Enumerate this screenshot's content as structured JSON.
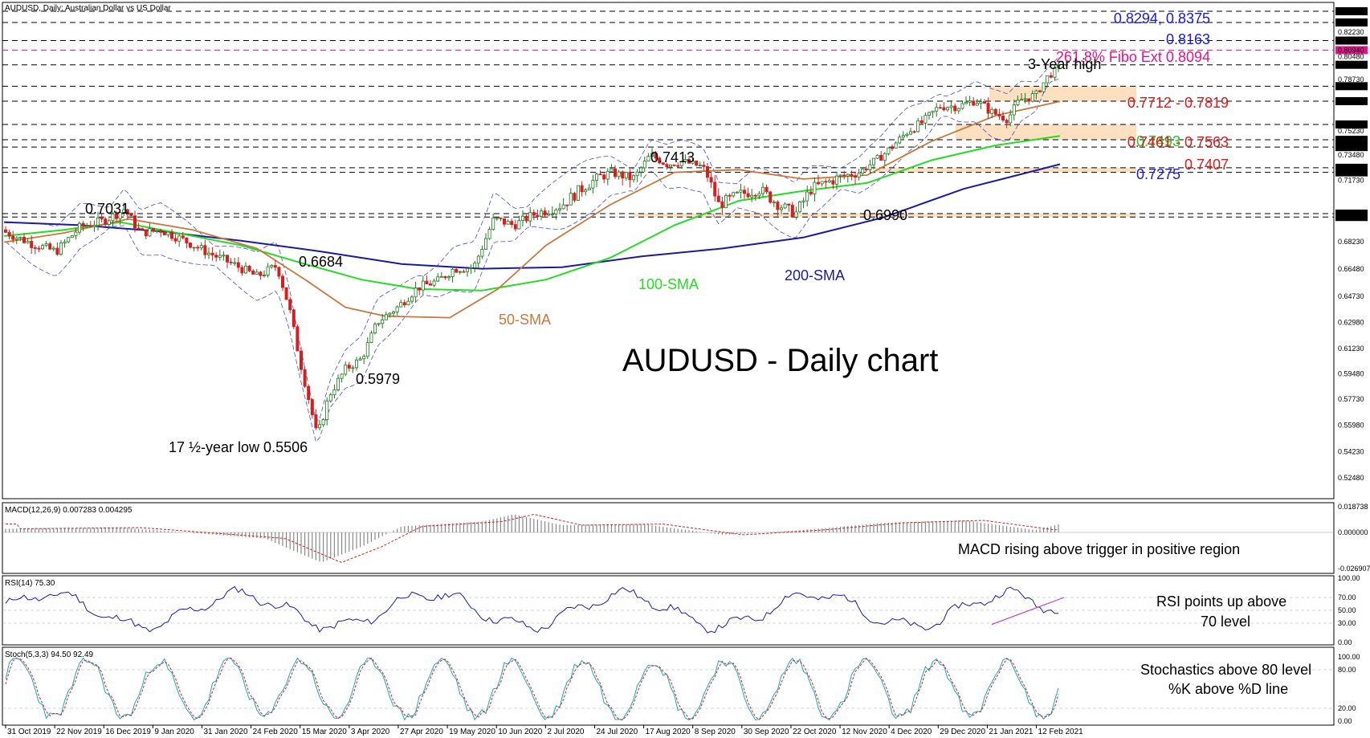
{
  "chart_data": {
    "type": "candlestick",
    "title": "AUDUSD, Daily:  Australian Dollar vs US Dollar",
    "headline": "AUDUSD - Daily chart",
    "x_dates": [
      "31 Oct 2019",
      "22 Nov 2019",
      "16 Dec 2019",
      "9 Jan 2020",
      "31 Jan 2020",
      "24 Feb 2020",
      "15 Mar 2020",
      "3 Apr 2020",
      "27 Apr 2020",
      "19 May 2020",
      "10 Jun 2020",
      "2 Jul 2020",
      "24 Jul 2020",
      "17 Aug 2020",
      "8 Sep 2020",
      "30 Sep 2020",
      "22 Oct 2020",
      "12 Nov 2020",
      "4 Dec 2020",
      "29 Dec 2020",
      "21 Jan 2021",
      "12 Feb 2021"
    ],
    "price_axis": [
      "0.83750",
      "0.82940",
      "0.82230",
      "0.81630",
      "0.80940",
      "0.80480",
      "0.79880",
      "0.78730",
      "0.78190",
      "0.77120",
      "0.75630",
      "0.75230",
      "0.74610",
      "0.74070",
      "0.73480",
      "0.72540",
      "0.72200",
      "0.71730",
      "0.70050",
      "0.69830",
      "0.68230",
      "0.66480",
      "0.64730",
      "0.62980",
      "0.61230",
      "0.59480",
      "0.57730",
      "0.55980",
      "0.54230",
      "0.52480"
    ],
    "price_ylim": [
      0.5125,
      0.842
    ],
    "levels": [
      {
        "value": "0.83750",
        "color": "#000000"
      },
      {
        "value": "0.82940",
        "color": "#000000"
      },
      {
        "value": "0.81630",
        "color": "#000000"
      },
      {
        "value": "0.80940",
        "color": "#e0148c"
      },
      {
        "value": "0.79880",
        "color": "#000000"
      },
      {
        "value": "0.78190",
        "color": "#000000"
      },
      {
        "value": "0.77120",
        "color": "#000000"
      },
      {
        "value": "0.75630",
        "color": "#000000"
      },
      {
        "value": "0.74610",
        "color": "#000000"
      },
      {
        "value": "0.74070",
        "color": "#000000"
      },
      {
        "value": "0.72540",
        "color": "#000000"
      },
      {
        "value": "0.72200",
        "color": "#000000"
      },
      {
        "value": "0.70050",
        "color": "#000000"
      },
      {
        "value": "0.69830",
        "color": "#000000"
      }
    ],
    "sma_labels": {
      "sma50": "50-SMA",
      "sma100": "100-SMA",
      "sma200": "200-SMA"
    },
    "annotations": {
      "levels_0829": "0.8294, 0.8375",
      "level_8163": "0.8163",
      "fibo": "261.8% Fibo Ext 0.8094",
      "three_year_high": "3-Year high",
      "range_7712": "0.7712 - 0.7819",
      "level_7493": "0.7493",
      "range_7461": "0.7461 - 0.7563",
      "level_7407": "0.7407",
      "level_7275": "0.7275",
      "p7413": "0.7413",
      "p7031": "0.7031",
      "p6990": "0.6990",
      "p6684": "0.6684",
      "p5979": "0.5979",
      "low": "17 ½-year low 0.5506"
    },
    "macd": {
      "title": "MACD(12,26,9) 0.007283 0.004295",
      "axis": [
        "0.018738",
        "0.000000",
        "-0.026907"
      ],
      "note": "MACD rising above trigger in positive region"
    },
    "rsi": {
      "title": "RSI(14) 75.30",
      "axis": [
        "100.00",
        "70.00",
        "50.00",
        "30.00",
        "0.00"
      ],
      "note_line1": "RSI points up above",
      "note_line2": "70 level"
    },
    "stoch": {
      "title": "Stoch(5,3,3) 94.50 92.49",
      "axis": [
        "100.00",
        "80.00",
        "20.00",
        "0.00"
      ],
      "note_line1": "Stochastics above 80 level",
      "note_line2": "%K above %D line"
    },
    "colors": {
      "up": "#1a7a1a",
      "down": "#d22020",
      "sma50": "#c8783c",
      "sma100": "#22dd22",
      "sma200": "#1a1aa0",
      "bollinger": "#4a4acc",
      "fibo": "#e0148c",
      "zone": "#fde0c0",
      "annotation_red": "#e01818",
      "annotation_blue": "#1a1ae0",
      "annotation_green": "#22cc22"
    }
  }
}
